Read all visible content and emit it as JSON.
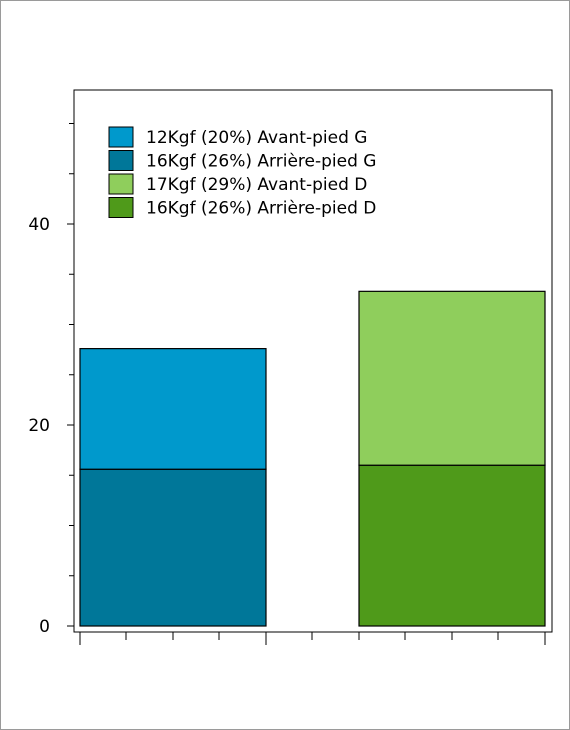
{
  "chart_data": {
    "type": "bar",
    "stacked": true,
    "categories": [
      "",
      ""
    ],
    "ylim": [
      0,
      54
    ],
    "yticks": [
      0,
      20,
      40
    ],
    "y_minor_step": 5,
    "grid": false,
    "legend_position": "top-left",
    "title": "",
    "xlabel": "",
    "ylabel": "",
    "series": [
      {
        "name": "12Kgf (20%) Avant-pied G",
        "color": "#0099cc",
        "values": [
          12,
          0
        ],
        "stack_order": 2,
        "category_index": 0
      },
      {
        "name": "16Kgf (26%) Arrière-pied G",
        "color": "#007799",
        "values": [
          15.6,
          0
        ],
        "stack_order": 1,
        "category_index": 0
      },
      {
        "name": "17Kgf (29%) Avant-pied D",
        "color": "#8fce5c",
        "values": [
          0,
          17.3
        ],
        "stack_order": 2,
        "category_index": 1
      },
      {
        "name": "16Kgf (26%) Arrière-pied D",
        "color": "#4f9a1a",
        "values": [
          0,
          16
        ],
        "stack_order": 1,
        "category_index": 1
      }
    ]
  }
}
